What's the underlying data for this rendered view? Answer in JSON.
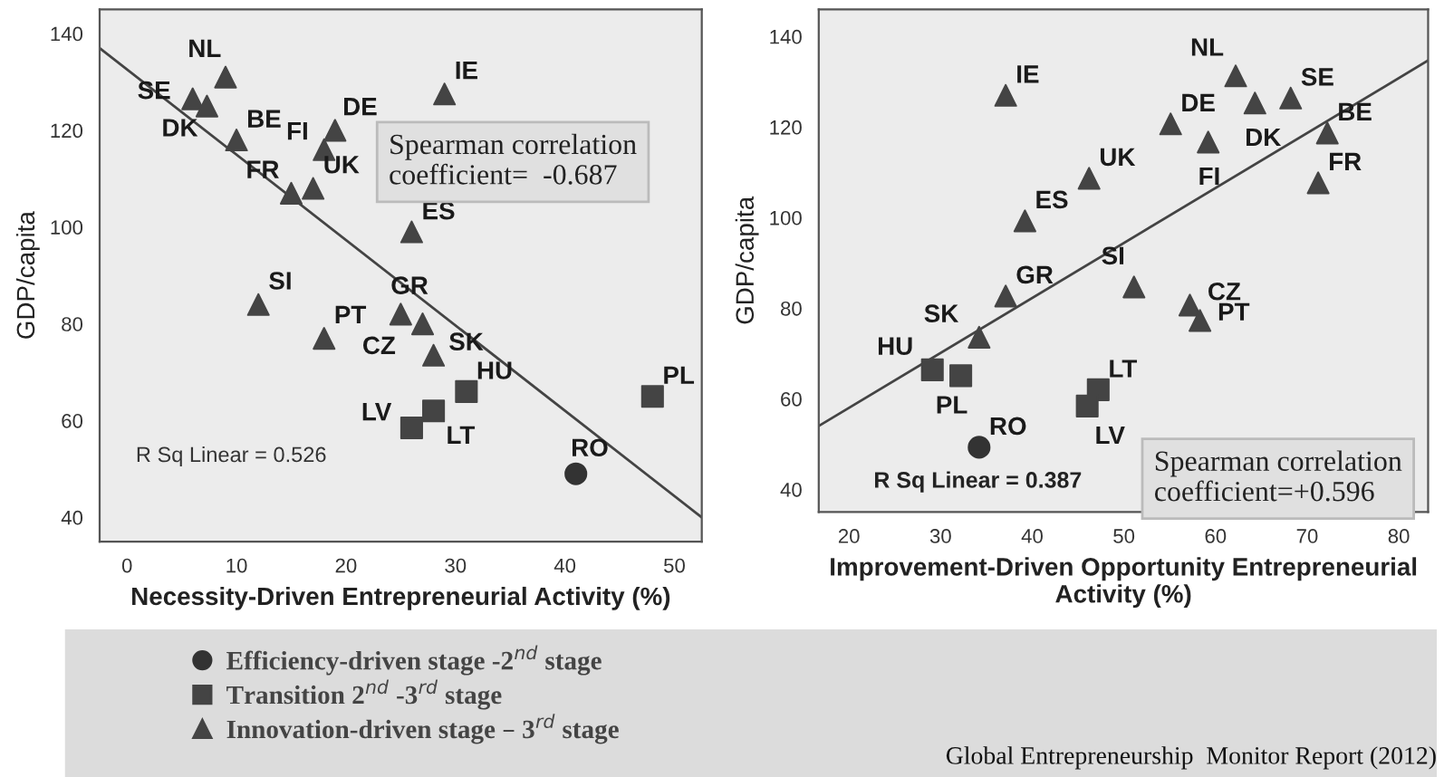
{
  "chart_data": [
    {
      "type": "scatter",
      "xlabel": "Necessity-Driven Entrepreneurial Activity (%)",
      "ylabel": "GDP/capita",
      "xlim": [
        -2.5,
        52.5
      ],
      "ylim": [
        35,
        145
      ],
      "xticks": [
        0,
        10,
        20,
        30,
        40,
        50
      ],
      "yticks": [
        40,
        60,
        80,
        100,
        120,
        140
      ],
      "grid": false,
      "legend": "bottom",
      "series": [
        {
          "name": "Efficiency-driven stage -2$^{nd}$ stage",
          "marker": "circle",
          "color": "#333333",
          "x": [
            41
          ],
          "values": [
            49
          ],
          "value_labels": [
            "RO"
          ]
        },
        {
          "name": "Transition 2$^{nd}$ -3$^{rd}$ stage",
          "marker": "square",
          "color": "#444444",
          "x": [
            31,
            28,
            26,
            48
          ],
          "values": [
            66,
            62,
            58.5,
            65
          ],
          "value_labels": [
            "HU",
            "LT",
            "LV",
            "PL"
          ]
        },
        {
          "name": "Innovation-driven stage – 3$^{rd}$ stage",
          "marker": "triangle",
          "color": "#444444",
          "x": [
            9,
            6,
            7.3,
            10,
            18,
            19,
            17,
            15,
            29,
            26,
            12,
            18,
            25,
            27,
            28
          ],
          "values": [
            131,
            126.5,
            125,
            118,
            116,
            120,
            108,
            107,
            127.5,
            99,
            84,
            77,
            82,
            80,
            73.5
          ],
          "value_labels": [
            "NL",
            "SE",
            "DK",
            "BE",
            "FI",
            "DE",
            "UK",
            "FR",
            "IE",
            "ES",
            "SI",
            "PT",
            "GR",
            "CZ",
            "SK"
          ]
        },
        {
          "type": "line",
          "color": "#444444",
          "x": [
            -2.5,
            52.5
          ],
          "values": [
            137,
            40
          ]
        }
      ],
      "annotations": [
        "Spearman correlation\ncoefficient=  -0.687",
        "R Sq Linear = 0.526"
      ]
    },
    {
      "type": "scatter",
      "xlabel": "Improvement-Driven Opportunity Entrepreneurial\nActivity (%)",
      "ylabel": "GDP/capita",
      "xlim": [
        16.7,
        83.2
      ],
      "ylim": [
        35,
        146
      ],
      "xticks": [
        20,
        30,
        40,
        50,
        60,
        70,
        80
      ],
      "yticks": [
        40,
        60,
        80,
        100,
        120,
        140
      ],
      "grid": false,
      "series": [
        {
          "marker": "circle",
          "color": "#333333",
          "x": [
            34.2
          ],
          "values": [
            49.3
          ],
          "value_labels": [
            "RO"
          ]
        },
        {
          "marker": "square",
          "color": "#444444",
          "x": [
            29.1,
            32.2,
            47.2,
            46
          ],
          "values": [
            66.4,
            65.1,
            62,
            58.4
          ],
          "value_labels": [
            "HU",
            "PL",
            "LT",
            "LV"
          ]
        },
        {
          "marker": "triangle",
          "color": "#444444",
          "x": [
            62.2,
            64.3,
            68.2,
            72.2,
            71.2,
            59.2,
            55.1,
            46.2,
            39.2,
            37.1,
            37.1,
            34.2,
            51.1,
            57.2,
            58.3
          ],
          "values": [
            131.3,
            125.3,
            126.4,
            118.7,
            107.7,
            116.7,
            120.7,
            108.7,
            99.3,
            127,
            82.7,
            73.6,
            84.7,
            80.7,
            77.3
          ],
          "value_labels": [
            "NL",
            "DK",
            "SE",
            "BE",
            "FR",
            "FI",
            "DE",
            "UK",
            "ES",
            "IE",
            "GR",
            "SK",
            "SI",
            "CZ",
            "PT"
          ]
        },
        {
          "type": "line",
          "color": "#444444",
          "x": [
            16.7,
            83.2
          ],
          "values": [
            54,
            134.7
          ]
        }
      ],
      "annotations": [
        "R Sq Linear = 0.387",
        "Spearman correlation\ncoefficient=+0.596",
        "Global Entrepreneurship  Monitor Report (2012)"
      ]
    }
  ]
}
